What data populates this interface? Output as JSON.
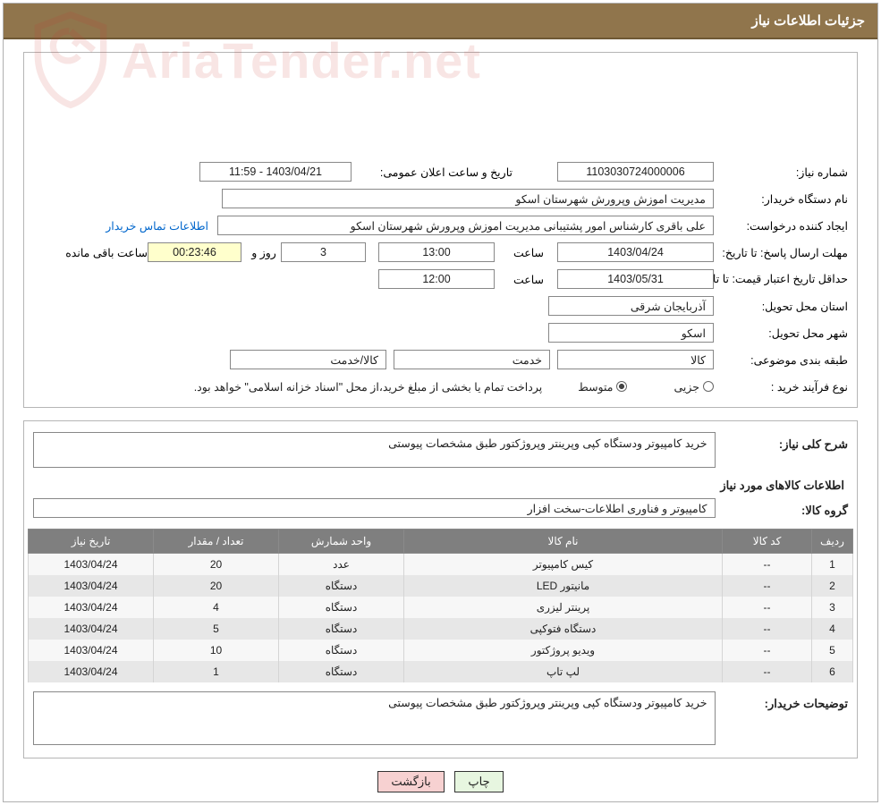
{
  "colors": {
    "title_bar_bg": "#90754c",
    "title_bar_border": "#6f5935",
    "title_bar_text": "#ffffff",
    "panel_border": "#b5b5b5",
    "field_border": "#888888",
    "table_header_bg": "#7f7f7f",
    "table_header_text": "#ffffff",
    "table_row_even": "#e7e7e7",
    "table_row_odd": "#f7f7f7",
    "link_color": "#0066cc",
    "remaining_bg": "#ffffcc",
    "btn_print_bg": "#e7f6e0",
    "btn_back_bg": "#f7d1d1",
    "watermark_color": "#c9312c"
  },
  "title": "جزئیات اطلاعات نیاز",
  "labels": {
    "need_number": "شماره نیاز:",
    "announce_datetime": "تاریخ و ساعت اعلان عمومی:",
    "buyer_org": "نام دستگاه خریدار:",
    "request_creator": "ایجاد کننده درخواست:",
    "contact_link": "اطلاعات تماس خریدار",
    "response_deadline": "مهلت ارسال پاسخ: تا تاریخ:",
    "hour": "ساعت",
    "days_and": "روز و",
    "remaining": "ساعت باقی مانده",
    "min_price_validity": "حداقل تاریخ اعتبار قیمت: تا تاریخ:",
    "delivery_province": "استان محل تحویل:",
    "delivery_city": "شهر محل تحویل:",
    "subject_class": "طبقه بندی موضوعی:",
    "subject_goods": "کالا",
    "subject_service": "خدمت",
    "subject_goods_service": "کالا/خدمت",
    "purchase_type": "نوع فرآیند خرید :",
    "detail": "جزیی",
    "medium": "متوسط",
    "purchase_note": "پرداخت تمام يا بخشى از مبلغ خريد،از محل \"اسناد خزانه اسلامى\" خواهد بود.",
    "general_desc": "شرح کلی نیاز:",
    "items_info_heading": "اطلاعات کالاهای مورد نیاز",
    "goods_group": "گروه کالا:",
    "buyer_notes": "توضیحات خریدار:"
  },
  "fields": {
    "need_number": "1103030724000006",
    "announce_datetime": "1403/04/21 - 11:59",
    "buyer_org": "مدیریت اموزش وپرورش شهرستان اسکو",
    "request_creator": "علی باقری‬‬ کارشناس امور پشتیبانی مدیریت اموزش وپرورش شهرستان اسکو",
    "response_deadline_date": "1403/04/24",
    "response_deadline_time": "13:00",
    "remaining_days": "3",
    "remaining_time": "00:23:46",
    "min_validity_date": "1403/05/31",
    "min_validity_time": "12:00",
    "delivery_province": "آذربایجان شرقی",
    "delivery_city": "اسکو",
    "subject_radio": "goods",
    "purchase_type_radio": "medium",
    "general_desc": "خرید کامپیوتر ودستگاه کپی وپرینتر وپروژکتور طبق مشخصات پیوستی",
    "goods_group": "کامپیوتر و فناوری اطلاعات-سخت افزار",
    "buyer_notes": "خرید کامپیوتر ودستگاه کپی وپرینتر وپروژکتور طبق مشخصات پیوستی"
  },
  "table": {
    "columns": [
      "ردیف",
      "کد کالا",
      "نام کالا",
      "واحد شمارش",
      "تعداد / مقدار",
      "تاریخ نیاز"
    ],
    "rows": [
      [
        "1",
        "--",
        "کیس کامپیوتر",
        "عدد",
        "20",
        "1403/04/24"
      ],
      [
        "2",
        "--",
        "مانیتور LED",
        "دستگاه",
        "20",
        "1403/04/24"
      ],
      [
        "3",
        "--",
        "پرینتر لیزری",
        "دستگاه",
        "4",
        "1403/04/24"
      ],
      [
        "4",
        "--",
        "دستگاه فتوکپی",
        "دستگاه",
        "5",
        "1403/04/24"
      ],
      [
        "5",
        "--",
        "ویدیو پروژکتور",
        "دستگاه",
        "10",
        "1403/04/24"
      ],
      [
        "6",
        "--",
        "لپ تاپ",
        "دستگاه",
        "1",
        "1403/04/24"
      ]
    ]
  },
  "buttons": {
    "print": "چاپ",
    "back": "بازگشت"
  },
  "watermark": {
    "text": "AriaTender.net"
  }
}
